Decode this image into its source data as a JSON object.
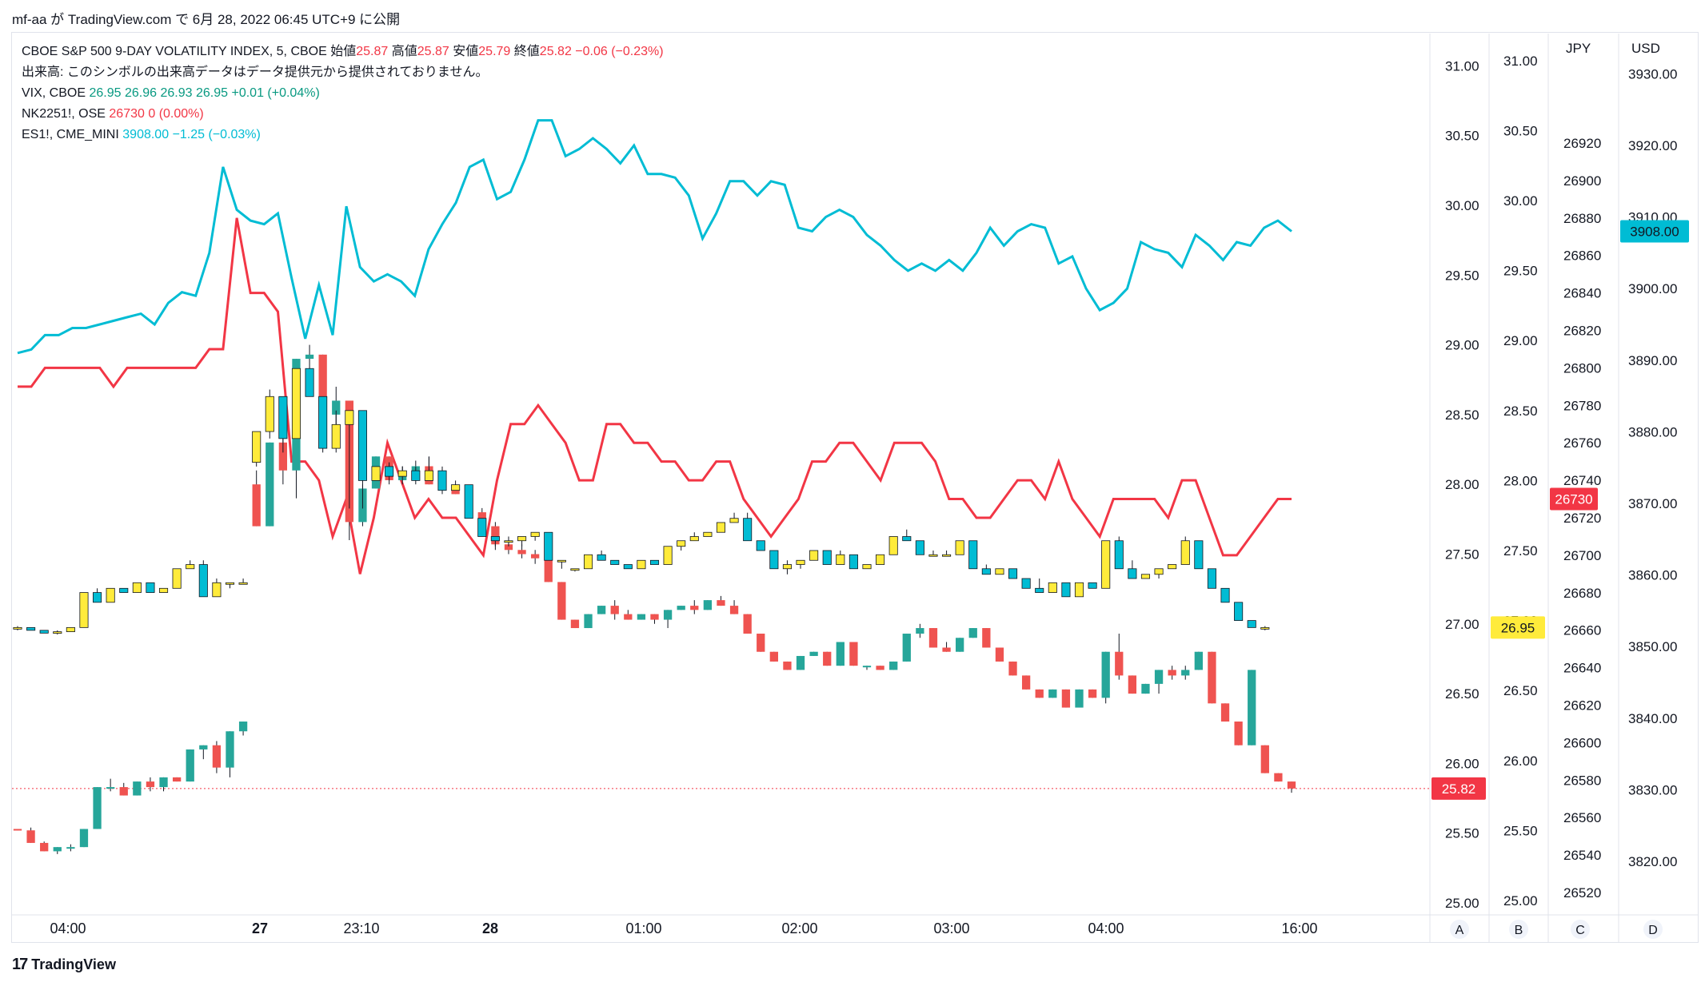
{
  "header": {
    "text": "mf-aa が TradingView.com で 6月 28, 2022 06:45 UTC+9 に公開"
  },
  "legend": {
    "main": {
      "symbol": "CBOE S&P 500 9-DAY VOLATILITY INDEX, 5, CBOE",
      "open_label": "始値",
      "open": "25.87",
      "high_label": "高値",
      "high": "25.87",
      "low_label": "安値",
      "low": "25.79",
      "close_label": "終値",
      "close": "25.82",
      "change": "−0.06 (−0.23%)"
    },
    "volume_note": "出来高: このシンボルの出来高データはデータ提供元から提供されておりません。",
    "vix": {
      "symbol": "VIX, CBOE",
      "o": "26.95",
      "h": "26.96",
      "l": "26.93",
      "c": "26.95",
      "change": "+0.01 (+0.04%)"
    },
    "nk": {
      "symbol": "NK2251!, OSE",
      "price": "26730",
      "change": "0 (0.00%)"
    },
    "es": {
      "symbol": "ES1!, CME_MINI",
      "price": "3908.00",
      "change": "−1.25 (−0.03%)"
    }
  },
  "footer": {
    "logo": "17",
    "brand": "TradingView"
  },
  "chart_data": {
    "type": "candlestick+line",
    "x_time_labels": [
      "04:00",
      "27",
      "23:10",
      "28",
      "01:00",
      "02:00",
      "03:00",
      "04:00",
      "16:00"
    ],
    "scale_buttons": [
      "A",
      "B",
      "C",
      "D"
    ],
    "axes": {
      "A": {
        "ticks": [
          "31.00",
          "30.50",
          "30.00",
          "29.50",
          "29.00",
          "28.50",
          "28.00",
          "27.50",
          "27.00",
          "26.50",
          "26.00",
          "25.50",
          "25.00"
        ],
        "last_label": "25.82"
      },
      "B": {
        "ticks": [
          "31.00",
          "30.50",
          "30.00",
          "29.50",
          "29.00",
          "28.50",
          "28.00",
          "27.50",
          "27.00",
          "26.50",
          "26.00",
          "25.50",
          "25.00"
        ],
        "last_label": "26.95"
      },
      "C": {
        "unit": "JPY",
        "ticks": [
          "26920",
          "26900",
          "26880",
          "26860",
          "26840",
          "26820",
          "26800",
          "26780",
          "26760",
          "26740",
          "26720",
          "26700",
          "26680",
          "26660",
          "26640",
          "26620",
          "26600",
          "26580",
          "26560",
          "26540",
          "26520"
        ],
        "last_label": "26730"
      },
      "D": {
        "unit": "USD",
        "ticks": [
          "3930.00",
          "3920.00",
          "3910.00",
          "3900.00",
          "3890.00",
          "3880.00",
          "3870.00",
          "3860.00",
          "3850.00",
          "3840.00",
          "3830.00",
          "3820.00"
        ],
        "last_label": "3908.00"
      }
    },
    "colors": {
      "up": "#26a69a",
      "down": "#ef5350",
      "vix_up": "#ffeb3b",
      "vix_down": "#00bcd4",
      "es": "#00bcd4",
      "nk": "#f23645"
    },
    "vix9d": [
      [
        25.53,
        25.53,
        25.53,
        25.52
      ],
      [
        25.52,
        25.54,
        25.43,
        25.43
      ],
      [
        25.43,
        25.44,
        25.37,
        25.37
      ],
      [
        25.37,
        25.4,
        25.35,
        25.4
      ],
      [
        25.4,
        25.42,
        25.37,
        25.4
      ],
      [
        25.4,
        25.53,
        25.4,
        25.53
      ],
      [
        25.53,
        25.83,
        25.53,
        25.83
      ],
      [
        25.83,
        25.89,
        25.8,
        25.83
      ],
      [
        25.83,
        25.86,
        25.77,
        25.77
      ],
      [
        25.77,
        25.87,
        25.77,
        25.87
      ],
      [
        25.87,
        25.9,
        25.8,
        25.83
      ],
      [
        25.83,
        25.9,
        25.8,
        25.9
      ],
      [
        25.9,
        25.9,
        25.87,
        25.87
      ],
      [
        25.87,
        26.1,
        25.87,
        26.1
      ],
      [
        26.1,
        26.13,
        26.03,
        26.13
      ],
      [
        26.13,
        26.16,
        25.93,
        25.97
      ],
      [
        25.97,
        26.23,
        25.9,
        26.23
      ],
      [
        26.23,
        26.3,
        26.2,
        26.3
      ],
      [
        28.0,
        28.1,
        27.7,
        27.7
      ],
      [
        27.7,
        28.3,
        27.8,
        28.3
      ],
      [
        28.3,
        28.4,
        28.0,
        28.1
      ],
      [
        28.1,
        28.9,
        27.9,
        28.9
      ],
      [
        28.9,
        29.0,
        28.8,
        28.93
      ],
      [
        28.93,
        28.8,
        28.4,
        28.5
      ],
      [
        28.5,
        28.7,
        28.3,
        28.6
      ],
      [
        28.6,
        28.6,
        27.6,
        27.73
      ],
      [
        27.73,
        28.0,
        27.7,
        27.97
      ],
      [
        27.97,
        28.2,
        27.97,
        28.2
      ],
      [
        28.2,
        28.2,
        28.0,
        28.03
      ],
      [
        28.03,
        28.13,
        28.0,
        28.07
      ],
      [
        28.07,
        28.17,
        28.0,
        28.13
      ],
      [
        28.13,
        28.2,
        28.0,
        28.0
      ],
      [
        28.0,
        28.03,
        27.93,
        27.97
      ],
      [
        27.97,
        28.0,
        27.93,
        27.93
      ],
      [
        27.93,
        27.97,
        27.8,
        27.8
      ],
      [
        27.8,
        27.83,
        27.7,
        27.7
      ],
      [
        27.7,
        27.73,
        27.53,
        27.57
      ],
      [
        27.57,
        27.6,
        27.5,
        27.53
      ],
      [
        27.53,
        27.57,
        27.47,
        27.5
      ],
      [
        27.5,
        27.53,
        27.43,
        27.47
      ],
      [
        27.47,
        27.47,
        27.3,
        27.3
      ],
      [
        27.3,
        27.3,
        27.03,
        27.03
      ],
      [
        27.03,
        27.03,
        26.97,
        26.97
      ],
      [
        26.97,
        27.07,
        26.97,
        27.07
      ],
      [
        27.07,
        27.13,
        27.07,
        27.13
      ],
      [
        27.13,
        27.17,
        27.03,
        27.07
      ],
      [
        27.07,
        27.1,
        27.03,
        27.03
      ],
      [
        27.03,
        27.07,
        27.03,
        27.07
      ],
      [
        27.07,
        27.07,
        27.0,
        27.03
      ],
      [
        27.03,
        27.1,
        26.97,
        27.1
      ],
      [
        27.1,
        27.13,
        27.1,
        27.13
      ],
      [
        27.13,
        27.17,
        27.07,
        27.1
      ],
      [
        27.1,
        27.17,
        27.1,
        27.17
      ],
      [
        27.17,
        27.2,
        27.13,
        27.13
      ],
      [
        27.13,
        27.17,
        27.07,
        27.07
      ],
      [
        27.07,
        27.07,
        26.93,
        26.93
      ],
      [
        26.93,
        26.93,
        26.8,
        26.8
      ],
      [
        26.8,
        26.8,
        26.73,
        26.73
      ],
      [
        26.73,
        26.73,
        26.67,
        26.67
      ],
      [
        26.67,
        26.77,
        26.67,
        26.77
      ],
      [
        26.77,
        26.8,
        26.77,
        26.8
      ],
      [
        26.8,
        26.8,
        26.7,
        26.7
      ],
      [
        26.7,
        26.87,
        26.7,
        26.87
      ],
      [
        26.87,
        26.87,
        26.7,
        26.7
      ],
      [
        26.7,
        26.7,
        26.67,
        26.7
      ],
      [
        26.7,
        26.7,
        26.67,
        26.67
      ],
      [
        26.67,
        26.73,
        26.67,
        26.73
      ],
      [
        26.73,
        26.93,
        26.73,
        26.93
      ],
      [
        26.93,
        27.0,
        26.9,
        26.97
      ],
      [
        26.97,
        26.97,
        26.83,
        26.83
      ],
      [
        26.83,
        26.87,
        26.8,
        26.8
      ],
      [
        26.8,
        26.9,
        26.8,
        26.9
      ],
      [
        26.9,
        26.97,
        26.9,
        26.97
      ],
      [
        26.97,
        26.97,
        26.83,
        26.83
      ],
      [
        26.83,
        26.83,
        26.73,
        26.73
      ],
      [
        26.73,
        26.73,
        26.63,
        26.63
      ],
      [
        26.63,
        26.63,
        26.53,
        26.53
      ],
      [
        26.53,
        26.53,
        26.47,
        26.47
      ],
      [
        26.47,
        26.53,
        26.47,
        26.53
      ],
      [
        26.53,
        26.53,
        26.4,
        26.4
      ],
      [
        26.4,
        26.53,
        26.4,
        26.53
      ],
      [
        26.53,
        26.53,
        26.47,
        26.47
      ],
      [
        26.47,
        26.8,
        26.43,
        26.8
      ],
      [
        26.8,
        26.93,
        26.6,
        26.63
      ],
      [
        26.63,
        26.63,
        26.5,
        26.5
      ],
      [
        26.5,
        26.57,
        26.5,
        26.57
      ],
      [
        26.57,
        26.67,
        26.5,
        26.67
      ],
      [
        26.67,
        26.7,
        26.6,
        26.63
      ],
      [
        26.63,
        26.7,
        26.6,
        26.67
      ],
      [
        26.67,
        26.8,
        26.67,
        26.8
      ],
      [
        26.8,
        26.8,
        26.5,
        26.43
      ],
      [
        26.43,
        26.43,
        26.3,
        26.3
      ],
      [
        26.3,
        26.3,
        26.13,
        26.13
      ],
      [
        26.13,
        26.67,
        26.13,
        26.67
      ],
      [
        26.13,
        26.13,
        25.93,
        25.93
      ],
      [
        25.93,
        25.93,
        25.87,
        25.87
      ],
      [
        25.87,
        25.87,
        25.79,
        25.82
      ]
    ],
    "vix": [
      [
        26.95,
        26.96,
        26.93,
        26.95
      ],
      [
        26.95,
        26.95,
        26.93,
        26.93
      ],
      [
        26.93,
        26.93,
        26.91,
        26.91
      ],
      [
        26.91,
        26.93,
        26.9,
        26.92
      ],
      [
        26.92,
        26.95,
        26.92,
        26.95
      ],
      [
        26.95,
        27.2,
        26.95,
        27.2
      ],
      [
        27.2,
        27.23,
        27.13,
        27.13
      ],
      [
        27.13,
        27.23,
        27.13,
        27.23
      ],
      [
        27.23,
        27.23,
        27.2,
        27.2
      ],
      [
        27.2,
        27.27,
        27.2,
        27.27
      ],
      [
        27.27,
        27.27,
        27.2,
        27.2
      ],
      [
        27.2,
        27.23,
        27.2,
        27.23
      ],
      [
        27.23,
        27.37,
        27.23,
        27.37
      ],
      [
        27.37,
        27.43,
        27.37,
        27.4
      ],
      [
        27.4,
        27.43,
        27.17,
        27.17
      ],
      [
        27.17,
        27.3,
        27.17,
        27.27
      ],
      [
        27.27,
        27.27,
        27.23,
        27.27
      ],
      [
        27.27,
        27.3,
        27.27,
        27.27
      ],
      [
        28.13,
        28.3,
        28.1,
        28.35
      ],
      [
        28.35,
        28.65,
        28.3,
        28.6
      ],
      [
        28.6,
        28.5,
        28.2,
        28.3
      ],
      [
        28.3,
        28.7,
        28.3,
        28.8
      ],
      [
        28.8,
        28.8,
        28.6,
        28.6
      ],
      [
        28.6,
        28.5,
        28.2,
        28.23
      ],
      [
        28.23,
        28.5,
        28.2,
        28.4
      ],
      [
        28.4,
        28.5,
        27.8,
        28.5
      ],
      [
        28.5,
        28.2,
        27.8,
        28.0
      ],
      [
        28.0,
        28.1,
        28.0,
        28.1
      ],
      [
        28.1,
        28.13,
        28.0,
        28.03
      ],
      [
        28.03,
        28.1,
        28.0,
        28.07
      ],
      [
        28.07,
        28.1,
        28.0,
        28.0
      ],
      [
        28.0,
        28.17,
        28.0,
        28.07
      ],
      [
        28.07,
        28.1,
        27.93,
        27.93
      ],
      [
        27.93,
        28.0,
        27.93,
        27.97
      ],
      [
        27.97,
        27.97,
        27.73,
        27.73
      ],
      [
        27.73,
        27.73,
        27.6,
        27.6
      ],
      [
        27.6,
        27.6,
        27.53,
        27.57
      ],
      [
        27.57,
        27.6,
        27.53,
        27.57
      ],
      [
        27.57,
        27.6,
        27.53,
        27.6
      ],
      [
        27.6,
        27.63,
        27.57,
        27.63
      ],
      [
        27.63,
        27.63,
        27.43,
        27.43
      ],
      [
        27.43,
        27.43,
        27.37,
        27.43
      ],
      [
        27.37,
        27.37,
        27.35,
        27.37
      ],
      [
        27.37,
        27.47,
        27.37,
        27.47
      ],
      [
        27.47,
        27.5,
        27.43,
        27.43
      ],
      [
        27.43,
        27.43,
        27.4,
        27.4
      ],
      [
        27.4,
        27.4,
        27.37,
        27.37
      ],
      [
        27.37,
        27.43,
        27.37,
        27.43
      ],
      [
        27.43,
        27.43,
        27.4,
        27.4
      ],
      [
        27.4,
        27.53,
        27.4,
        27.53
      ],
      [
        27.53,
        27.57,
        27.5,
        27.57
      ],
      [
        27.57,
        27.63,
        27.57,
        27.6
      ],
      [
        27.6,
        27.63,
        27.6,
        27.63
      ],
      [
        27.63,
        27.7,
        27.63,
        27.7
      ],
      [
        27.7,
        27.77,
        27.7,
        27.73
      ],
      [
        27.73,
        27.77,
        27.57,
        27.57
      ],
      [
        27.57,
        27.57,
        27.5,
        27.5
      ],
      [
        27.5,
        27.5,
        27.37,
        27.37
      ],
      [
        27.37,
        27.43,
        27.33,
        27.4
      ],
      [
        27.4,
        27.43,
        27.37,
        27.43
      ],
      [
        27.43,
        27.5,
        27.43,
        27.5
      ],
      [
        27.5,
        27.5,
        27.4,
        27.4
      ],
      [
        27.4,
        27.5,
        27.4,
        27.47
      ],
      [
        27.47,
        27.47,
        27.37,
        27.37
      ],
      [
        27.37,
        27.4,
        27.37,
        27.4
      ],
      [
        27.4,
        27.47,
        27.4,
        27.47
      ],
      [
        27.47,
        27.6,
        27.47,
        27.6
      ],
      [
        27.6,
        27.65,
        27.57,
        27.57
      ],
      [
        27.57,
        27.57,
        27.47,
        27.47
      ],
      [
        27.47,
        27.5,
        27.47,
        27.47
      ],
      [
        27.47,
        27.5,
        27.47,
        27.47
      ],
      [
        27.47,
        27.57,
        27.47,
        27.57
      ],
      [
        27.57,
        27.57,
        27.37,
        27.37
      ],
      [
        27.37,
        27.4,
        27.33,
        27.33
      ],
      [
        27.33,
        27.37,
        27.33,
        27.37
      ],
      [
        27.37,
        27.37,
        27.3,
        27.3
      ],
      [
        27.3,
        27.3,
        27.23,
        27.23
      ],
      [
        27.23,
        27.3,
        27.2,
        27.2
      ],
      [
        27.2,
        27.27,
        27.2,
        27.27
      ],
      [
        27.27,
        27.27,
        27.17,
        27.17
      ],
      [
        27.17,
        27.27,
        27.17,
        27.27
      ],
      [
        27.27,
        27.27,
        27.23,
        27.23
      ],
      [
        27.23,
        27.57,
        27.23,
        27.57
      ],
      [
        27.57,
        27.6,
        27.37,
        27.37
      ],
      [
        27.37,
        27.43,
        27.3,
        27.3
      ],
      [
        27.3,
        27.33,
        27.3,
        27.33
      ],
      [
        27.33,
        27.37,
        27.3,
        27.37
      ],
      [
        27.37,
        27.4,
        27.37,
        27.4
      ],
      [
        27.4,
        27.6,
        27.4,
        27.57
      ],
      [
        27.57,
        27.57,
        27.37,
        27.37
      ],
      [
        27.37,
        27.37,
        27.23,
        27.23
      ],
      [
        27.23,
        27.2,
        27.13,
        27.13
      ],
      [
        27.13,
        27.13,
        27.0,
        27.0
      ],
      [
        27.0,
        27.0,
        26.95,
        26.95
      ],
      [
        26.95,
        26.96,
        26.93,
        26.95
      ]
    ],
    "nk_line": [
      26790,
      26790,
      26800,
      26800,
      26800,
      26800,
      26800,
      26790,
      26800,
      26800,
      26800,
      26800,
      26800,
      26800,
      26810,
      26810,
      26880,
      26840,
      26840,
      26830,
      26750,
      26750,
      26740,
      26710,
      26730,
      26690,
      26720,
      26760,
      26740,
      26720,
      26730,
      26720,
      26720,
      26710,
      26700,
      26740,
      26770,
      26770,
      26780,
      26770,
      26760,
      26740,
      26740,
      26770,
      26770,
      26760,
      26760,
      26750,
      26750,
      26740,
      26740,
      26750,
      26750,
      26730,
      26720,
      26710,
      26720,
      26730,
      26750,
      26750,
      26760,
      26760,
      26750,
      26740,
      26760,
      26760,
      26760,
      26750,
      26730,
      26730,
      26720,
      26720,
      26730,
      26740,
      26740,
      26730,
      26750,
      26730,
      26720,
      26710,
      26730,
      26730,
      26730,
      26730,
      26720,
      26740,
      26740,
      26720,
      26700,
      26700,
      26710,
      26720,
      26730,
      26730
    ],
    "es_line": [
      3891.0,
      3891.5,
      3893.5,
      3893.5,
      3894.5,
      3894.5,
      3895.0,
      3895.5,
      3896.0,
      3896.5,
      3895.0,
      3898.0,
      3899.5,
      3899.0,
      3905.0,
      3917.0,
      3911.0,
      3909.5,
      3909.0,
      3910.5,
      3901.5,
      3893.0,
      3900.5,
      3893.5,
      3911.5,
      3903.0,
      3901.0,
      3902.0,
      3901.0,
      3899.0,
      3905.5,
      3909.0,
      3912.0,
      3917.0,
      3918.0,
      3912.5,
      3913.5,
      3918.0,
      3923.5,
      3923.5,
      3918.5,
      3919.5,
      3921.0,
      3919.5,
      3917.5,
      3920.0,
      3916.0,
      3916.0,
      3915.5,
      3913.0,
      3907.0,
      3910.5,
      3915.0,
      3915.0,
      3913.0,
      3915.0,
      3914.5,
      3908.5,
      3908.0,
      3910.0,
      3911.0,
      3910.0,
      3907.5,
      3906.0,
      3904.0,
      3902.5,
      3903.5,
      3902.5,
      3904.0,
      3902.5,
      3905.0,
      3908.5,
      3906.0,
      3908.0,
      3909.0,
      3908.5,
      3903.5,
      3904.5,
      3900.0,
      3897.0,
      3898.0,
      3900.0,
      3906.5,
      3905.5,
      3905.0,
      3903.0,
      3907.5,
      3906.0,
      3904.0,
      3906.5,
      3906.0,
      3908.5,
      3909.5,
      3908.0
    ]
  }
}
